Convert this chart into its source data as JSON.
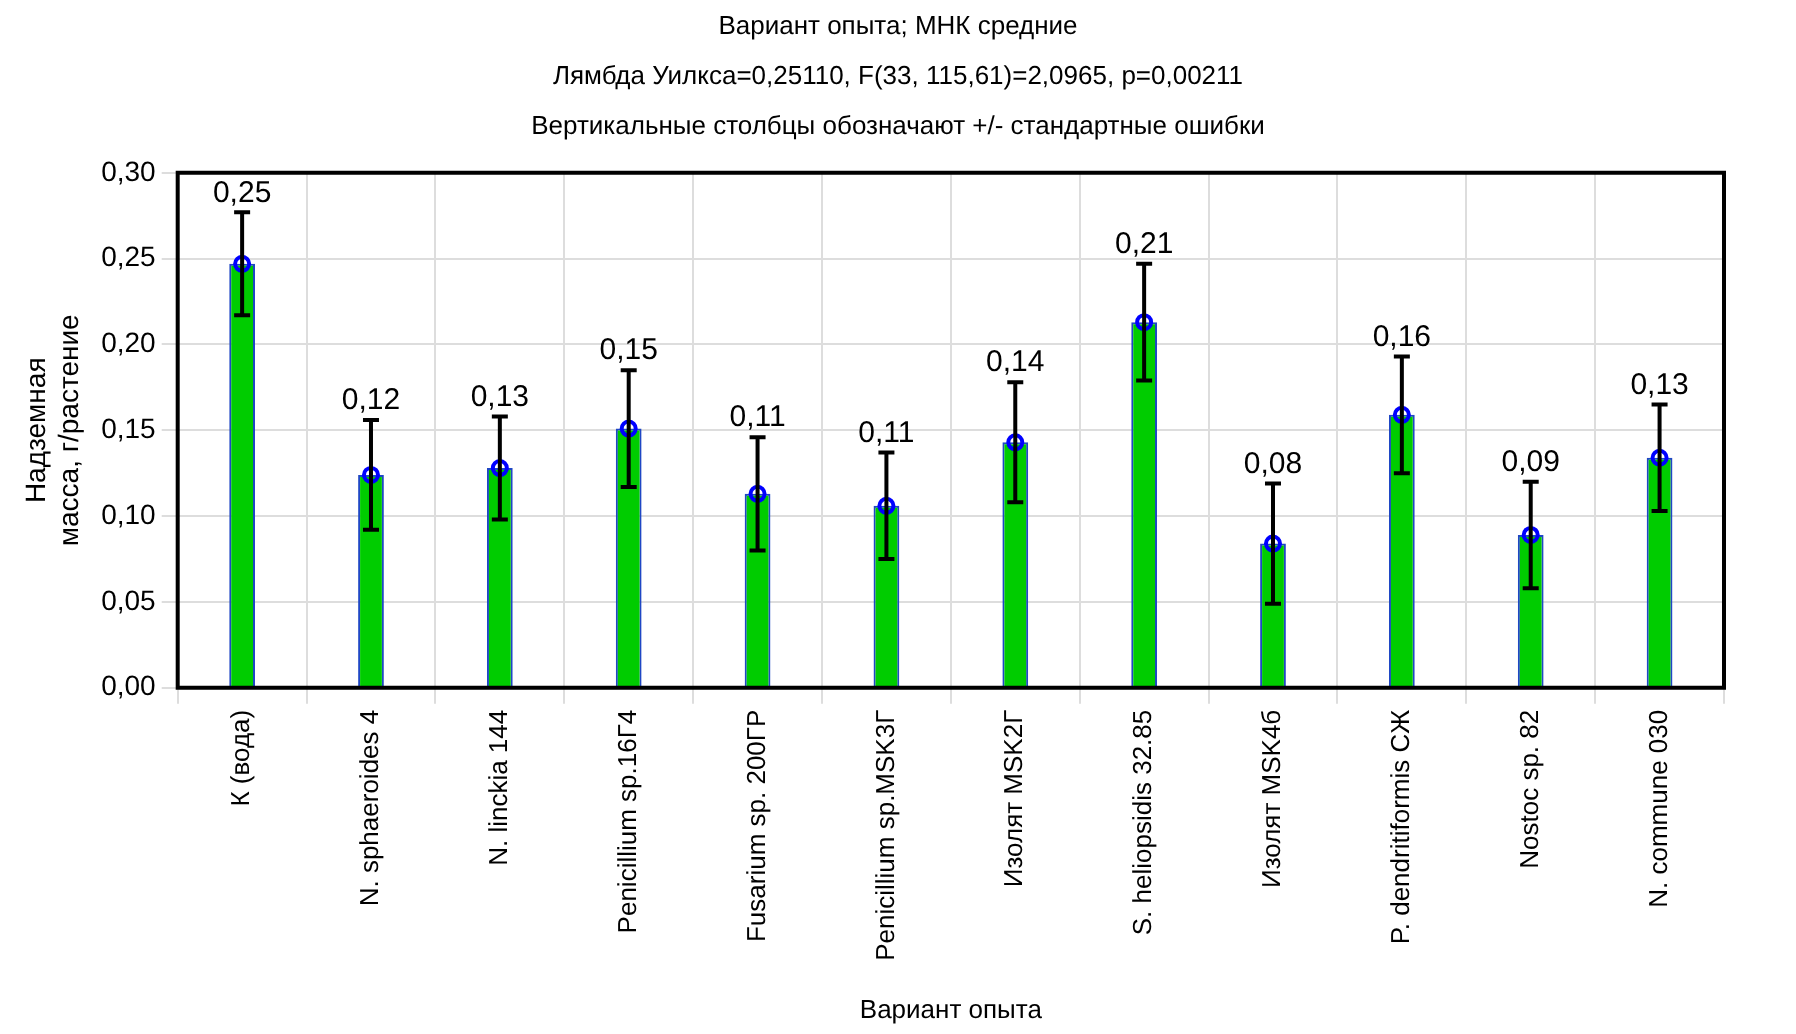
{
  "chart_data": {
    "type": "bar",
    "title": "Вариант опыта; МНК средние",
    "subtitle": "Лямбда Уилкса=0,25110, F(33, 115,61)=2,0965, p=0,00211",
    "annotations": [
      "Вертикальные столбцы обозначают +/- стандартные ошибки"
    ],
    "xlabel": "Вариант опыта",
    "ylabel": "Надземная масса, г/растение",
    "categories": [
      "К (вода)",
      "N. sphaeroides 4",
      "N. linckia 144",
      "Penicillium sp.16Г4",
      "Fusarium sp. 200ГР",
      "Penicillium sp.MSK3Г",
      "Изолят MSK2Г",
      "S. heliopsidis 32.85",
      "Изолят MSK4б",
      "P. dendritiformis СЖ",
      "Nostoc sp. 82",
      "N. commune 030"
    ],
    "series": [
      {
        "color": "#00cc00",
        "values": [
          0.247,
          0.124,
          0.128,
          0.151,
          0.113,
          0.106,
          0.143,
          0.213,
          0.084,
          0.159,
          0.089,
          0.134
        ],
        "errors": [
          0.03,
          0.032,
          0.03,
          0.034,
          0.033,
          0.031,
          0.035,
          0.034,
          0.035,
          0.034,
          0.031,
          0.031
        ],
        "value_labels": [
          "0,25",
          "0,12",
          "0,13",
          "0,15",
          "0,11",
          "0,11",
          "0,14",
          "0,21",
          "0,08",
          "0,16",
          "0,09",
          "0,13"
        ]
      },
      {
        "type": "scatter",
        "color": "#0000ff",
        "marker": "circle",
        "x": [
          "К (вода)",
          "N. sphaeroides 4",
          "N. linckia 144",
          "Penicillium sp.16Г4",
          "Fusarium sp. 200ГР",
          "Penicillium sp.MSK3Г",
          "Изолят MSK2Г",
          "S. heliopsidis 32.85",
          "Изолят MSK4б",
          "P. dendritiformis СЖ",
          "Nostoc sp. 82",
          "N. commune 030"
        ],
        "values": [
          0.247,
          0.124,
          0.128,
          0.151,
          0.113,
          0.106,
          0.143,
          0.213,
          0.084,
          0.159,
          0.089,
          0.134
        ]
      }
    ],
    "ylim": [
      0,
      0.3
    ],
    "yticks": [
      {
        "value": 0,
        "label": "0,00"
      },
      {
        "value": 0.05,
        "label": "0,05"
      },
      {
        "value": 0.1,
        "label": "0,10"
      },
      {
        "value": 0.15,
        "label": "0,15"
      },
      {
        "value": 0.2,
        "label": "0,20"
      },
      {
        "value": 0.25,
        "label": "0,25"
      },
      {
        "value": 0.3,
        "label": "0,30"
      }
    ],
    "grid": true,
    "legend": false
  }
}
